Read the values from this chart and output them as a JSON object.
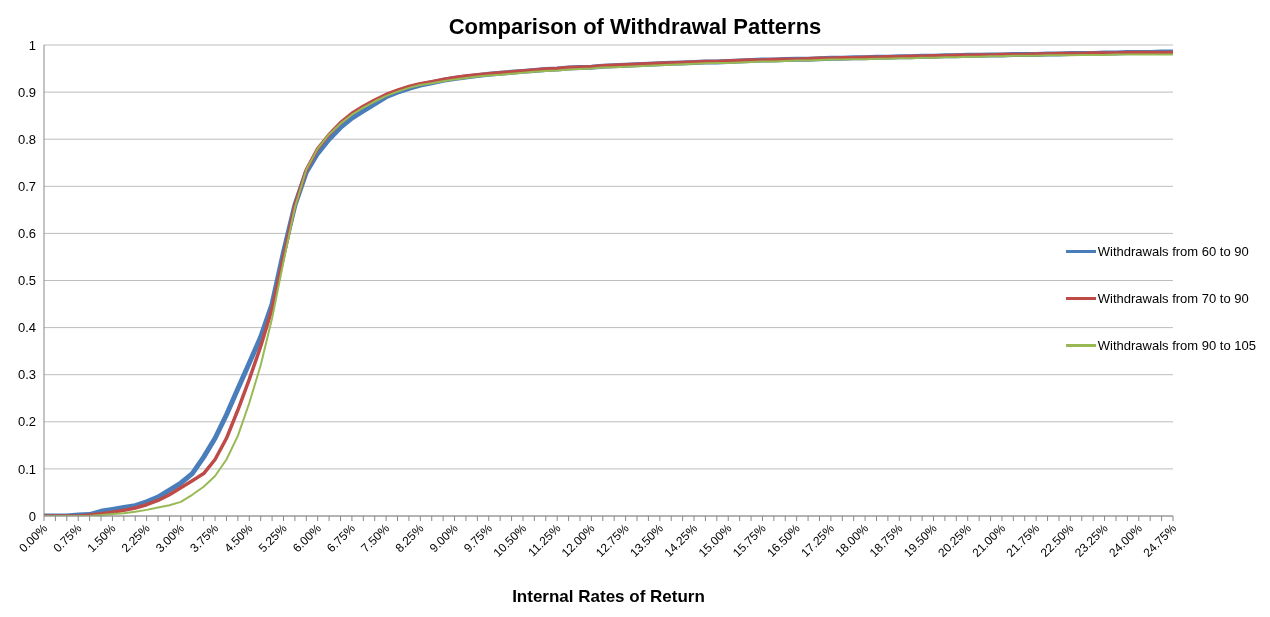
{
  "chart_data": {
    "type": "line",
    "title": "Comparison of Withdrawal Patterns",
    "xlabel": "Internal Rates of Return",
    "categories": [
      "0.00%",
      null,
      null,
      "0.75%",
      null,
      null,
      "1.50%",
      null,
      null,
      "2.25%",
      null,
      null,
      "3.00%",
      null,
      null,
      "3.75%",
      null,
      null,
      "4.50%",
      null,
      null,
      "5.25%",
      null,
      null,
      "6.00%",
      null,
      null,
      "6.75%",
      null,
      null,
      "7.50%",
      null,
      null,
      "8.25%",
      null,
      null,
      "9.00%",
      null,
      null,
      "9.75%",
      null,
      null,
      "10.50%",
      null,
      null,
      "11.25%",
      null,
      null,
      "12.00%",
      null,
      null,
      "12.75%",
      null,
      null,
      "13.50%",
      null,
      null,
      "14.25%",
      null,
      null,
      "15.00%",
      null,
      null,
      "15.75%",
      null,
      null,
      "16.50%",
      null,
      null,
      "17.25%",
      null,
      null,
      "18.00%",
      null,
      null,
      "18.75%",
      null,
      null,
      "19.50%",
      null,
      null,
      "20.25%",
      null,
      null,
      "21.00%",
      null,
      null,
      "21.75%",
      null,
      null,
      "22.50%",
      null,
      null,
      "23.25%",
      null,
      null,
      "24.00%",
      null,
      null,
      "24.75%"
    ],
    "series": [
      {
        "name": "Withdrawals from 60 to 90",
        "color": "#4a7ebb",
        "values": [
          0,
          0,
          0,
          0.002,
          0.003,
          0.01,
          0.014,
          0.018,
          0.022,
          0.03,
          0.04,
          0.055,
          0.07,
          0.09,
          0.125,
          0.165,
          0.215,
          0.27,
          0.325,
          0.38,
          0.45,
          0.56,
          0.66,
          0.73,
          0.77,
          0.8,
          0.825,
          0.845,
          0.86,
          0.875,
          0.89,
          0.9,
          0.908,
          0.915,
          0.92,
          0.925,
          0.929,
          0.932,
          0.935,
          0.938,
          0.94,
          0.942,
          0.944,
          0.946,
          0.948,
          0.949,
          0.951,
          0.952,
          0.953,
          0.955,
          0.956,
          0.957,
          0.958,
          0.959,
          0.96,
          0.961,
          0.962,
          0.963,
          0.964,
          0.964,
          0.965,
          0.966,
          0.967,
          0.968,
          0.968,
          0.969,
          0.97,
          0.97,
          0.971,
          0.972,
          0.972,
          0.973,
          0.973,
          0.974,
          0.974,
          0.975,
          0.975,
          0.976,
          0.976,
          0.977,
          0.977,
          0.978,
          0.978,
          0.979,
          0.979,
          0.98,
          0.98,
          0.98,
          0.981,
          0.981,
          0.982,
          0.982,
          0.982,
          0.983,
          0.983,
          0.984,
          0.984,
          0.984,
          0.985,
          0.985
        ]
      },
      {
        "name": "Withdrawals from 70 to 90",
        "color": "#be4b48",
        "values": [
          0,
          0,
          0,
          0,
          0.002,
          0.005,
          0.008,
          0.012,
          0.017,
          0.024,
          0.033,
          0.045,
          0.06,
          0.075,
          0.09,
          0.12,
          0.165,
          0.225,
          0.29,
          0.36,
          0.44,
          0.55,
          0.66,
          0.735,
          0.78,
          0.81,
          0.835,
          0.855,
          0.87,
          0.883,
          0.895,
          0.904,
          0.912,
          0.918,
          0.922,
          0.927,
          0.931,
          0.934,
          0.937,
          0.939,
          0.941,
          0.943,
          0.945,
          0.947,
          0.949,
          0.95,
          0.952,
          0.953,
          0.954,
          0.956,
          0.957,
          0.958,
          0.959,
          0.96,
          0.961,
          0.962,
          0.963,
          0.964,
          0.965,
          0.965,
          0.966,
          0.967,
          0.968,
          0.968,
          0.969,
          0.97,
          0.97,
          0.971,
          0.972,
          0.972,
          0.973,
          0.973,
          0.974,
          0.974,
          0.975,
          0.975,
          0.976,
          0.976,
          0.977,
          0.977,
          0.978,
          0.978,
          0.979,
          0.979,
          0.98,
          0.98,
          0.98,
          0.981,
          0.981,
          0.982,
          0.982,
          0.982,
          0.983,
          0.983,
          0.983,
          0.984,
          0.984,
          0.984,
          0.984,
          0.984
        ]
      },
      {
        "name": "Withdrawals from 90 to 105",
        "color": "#98b954",
        "values": [
          0,
          0,
          0,
          0,
          0,
          0.002,
          0.004,
          0.006,
          0.009,
          0.013,
          0.018,
          0.023,
          0.03,
          0.045,
          0.062,
          0.085,
          0.12,
          0.17,
          0.24,
          0.32,
          0.42,
          0.54,
          0.655,
          0.735,
          0.78,
          0.81,
          0.833,
          0.852,
          0.867,
          0.88,
          0.892,
          0.901,
          0.909,
          0.915,
          0.919,
          0.923,
          0.927,
          0.93,
          0.933,
          0.935,
          0.937,
          0.939,
          0.941,
          0.943,
          0.945,
          0.946,
          0.948,
          0.949,
          0.95,
          0.952,
          0.953,
          0.954,
          0.955,
          0.956,
          0.957,
          0.958,
          0.959,
          0.96,
          0.961,
          0.962,
          0.962,
          0.963,
          0.964,
          0.965,
          0.965,
          0.966,
          0.967,
          0.967,
          0.968,
          0.969,
          0.969,
          0.97,
          0.97,
          0.971,
          0.971,
          0.972,
          0.972,
          0.973,
          0.973,
          0.974,
          0.974,
          0.975,
          0.975,
          0.976,
          0.976,
          0.977,
          0.977,
          0.977,
          0.978,
          0.978,
          0.978,
          0.979,
          0.979,
          0.979,
          0.98,
          0.98,
          0.98,
          0.98,
          0.98,
          0.98
        ]
      }
    ],
    "ylim": [
      0,
      1
    ],
    "yticks": [
      0,
      0.1,
      0.2,
      0.3,
      0.4,
      0.5,
      0.6,
      0.7,
      0.8,
      0.9,
      1
    ],
    "grid": "y",
    "legend": "right",
    "marker": "none",
    "line_style": "solid"
  }
}
